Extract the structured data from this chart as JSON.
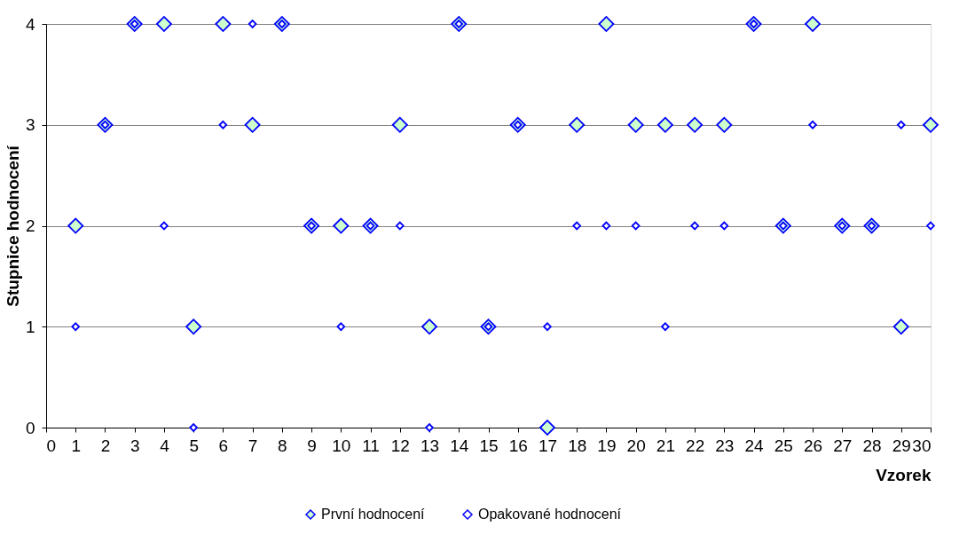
{
  "chart_data": {
    "type": "scatter",
    "xlabel": "Vzorek",
    "ylabel": "Stupnice hodnocení",
    "x": [
      1,
      2,
      3,
      4,
      5,
      6,
      7,
      8,
      9,
      10,
      11,
      12,
      13,
      14,
      15,
      16,
      17,
      18,
      19,
      20,
      21,
      22,
      23,
      24,
      25,
      26,
      27,
      28,
      29,
      30
    ],
    "series": [
      {
        "name": "První hodnocení",
        "color": "#ccffcc",
        "values": [
          2,
          3,
          4,
          4,
          1,
          4,
          3,
          4,
          2,
          2,
          2,
          3,
          1,
          4,
          1,
          3,
          0,
          3,
          4,
          3,
          3,
          3,
          3,
          4,
          2,
          4,
          2,
          2,
          1,
          3
        ]
      },
      {
        "name": "Opakované hodnocení",
        "color": "#ffffff",
        "values": [
          1,
          3,
          4,
          2,
          0,
          3,
          4,
          4,
          2,
          1,
          2,
          2,
          0,
          4,
          1,
          3,
          1,
          2,
          2,
          2,
          1,
          2,
          2,
          4,
          2,
          3,
          2,
          2,
          3,
          2
        ]
      }
    ],
    "xlim": [
      0,
      30
    ],
    "xticks": [
      0,
      1,
      2,
      3,
      4,
      5,
      6,
      7,
      8,
      9,
      10,
      11,
      12,
      13,
      14,
      15,
      16,
      17,
      18,
      19,
      20,
      21,
      22,
      23,
      24,
      25,
      26,
      27,
      28,
      29,
      30
    ],
    "ylim": [
      0,
      4
    ],
    "yticks": [
      0,
      1,
      2,
      3,
      4
    ],
    "grid": "y",
    "legend": "bottom",
    "marker": "diamond"
  }
}
